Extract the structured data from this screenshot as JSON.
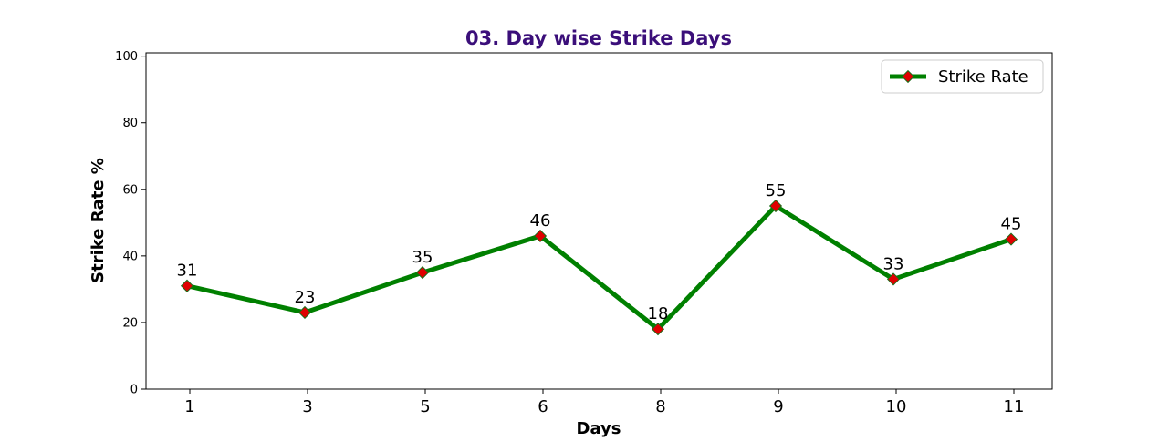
{
  "chart_data": {
    "type": "line",
    "title": "03. Day wise Strike Days",
    "xlabel": "Days",
    "ylabel": "Strike Rate %",
    "categories": [
      "1",
      "3",
      "5",
      "6",
      "8",
      "9",
      "10",
      "11"
    ],
    "series": [
      {
        "name": "Strike Rate",
        "values": [
          31,
          23,
          35,
          46,
          18,
          55,
          33,
          45
        ]
      }
    ],
    "data_labels": [
      "31",
      "23",
      "35",
      "46",
      "18",
      "55",
      "33",
      "45"
    ],
    "ylim": [
      0,
      100
    ],
    "yticks": [
      0,
      20,
      40,
      60,
      80,
      100
    ],
    "grid": false,
    "legend_position": "top-right",
    "colors": {
      "title": "#3b0f7a",
      "line": "#008000",
      "marker_fill": "#e00000",
      "marker_edge": "#1a6e1a",
      "axis": "#000000",
      "text": "#000000"
    }
  }
}
